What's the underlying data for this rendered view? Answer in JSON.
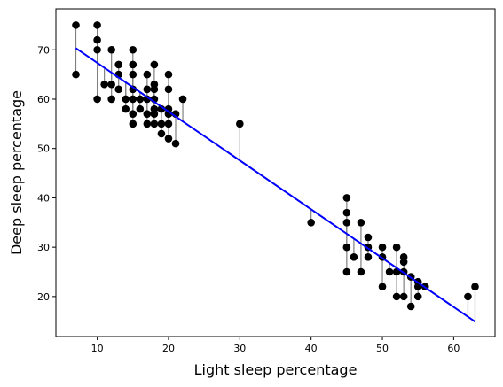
{
  "chart_data": {
    "type": "scatter",
    "title": "",
    "xlabel": "Light sleep percentage",
    "ylabel": "Deep sleep percentage",
    "xlim": [
      4.2,
      65.8
    ],
    "ylim": [
      11.9,
      78.3
    ],
    "xticks": [
      10,
      20,
      30,
      40,
      50,
      60
    ],
    "yticks": [
      20,
      30,
      40,
      50,
      60,
      70
    ],
    "xtick_labels": [
      "10",
      "20",
      "30",
      "40",
      "50",
      "60"
    ],
    "ytick_labels": [
      "20",
      "30",
      "40",
      "50",
      "60",
      "70"
    ],
    "grid": false,
    "legend": null,
    "regression": {
      "slope": -0.9896,
      "intercept": 77.26,
      "x_range": [
        7,
        63
      ]
    },
    "points": [
      [
        7,
        75
      ],
      [
        7,
        65
      ],
      [
        10,
        75
      ],
      [
        10,
        72
      ],
      [
        10,
        70
      ],
      [
        10,
        60
      ],
      [
        11,
        63
      ],
      [
        12,
        70
      ],
      [
        12,
        63
      ],
      [
        12,
        60
      ],
      [
        13,
        67
      ],
      [
        13,
        65
      ],
      [
        13,
        62
      ],
      [
        14,
        60
      ],
      [
        14,
        58
      ],
      [
        15,
        70
      ],
      [
        15,
        67
      ],
      [
        15,
        65
      ],
      [
        15,
        62
      ],
      [
        15,
        60
      ],
      [
        15,
        57
      ],
      [
        15,
        55
      ],
      [
        16,
        60
      ],
      [
        16,
        58
      ],
      [
        17,
        65
      ],
      [
        17,
        62
      ],
      [
        17,
        60
      ],
      [
        17,
        57
      ],
      [
        17,
        55
      ],
      [
        18,
        67
      ],
      [
        18,
        63
      ],
      [
        18,
        62
      ],
      [
        18,
        60
      ],
      [
        18,
        58
      ],
      [
        18,
        57
      ],
      [
        18,
        55
      ],
      [
        19,
        58
      ],
      [
        19,
        55
      ],
      [
        19,
        53
      ],
      [
        20,
        65
      ],
      [
        20,
        62
      ],
      [
        20,
        58
      ],
      [
        20,
        57
      ],
      [
        20,
        55
      ],
      [
        20,
        52
      ],
      [
        21,
        57
      ],
      [
        21,
        51
      ],
      [
        22,
        60
      ],
      [
        30,
        55
      ],
      [
        40,
        35
      ],
      [
        45,
        40
      ],
      [
        45,
        37
      ],
      [
        45,
        35
      ],
      [
        45,
        30
      ],
      [
        45,
        25
      ],
      [
        46,
        28
      ],
      [
        47,
        35
      ],
      [
        47,
        25
      ],
      [
        48,
        32
      ],
      [
        48,
        30
      ],
      [
        48,
        28
      ],
      [
        50,
        30
      ],
      [
        50,
        28
      ],
      [
        50,
        22
      ],
      [
        51,
        25
      ],
      [
        52,
        30
      ],
      [
        52,
        25
      ],
      [
        52,
        20
      ],
      [
        53,
        28
      ],
      [
        53,
        27
      ],
      [
        53,
        25
      ],
      [
        53,
        20
      ],
      [
        54,
        24
      ],
      [
        54,
        18
      ],
      [
        55,
        23
      ],
      [
        55,
        22
      ],
      [
        55,
        20
      ],
      [
        56,
        22
      ],
      [
        62,
        20
      ],
      [
        63,
        22
      ]
    ]
  },
  "style": {
    "point_color": "#000000",
    "line_color": "#0000ff",
    "residual_color": "#808080",
    "axes_color": "#000000"
  }
}
